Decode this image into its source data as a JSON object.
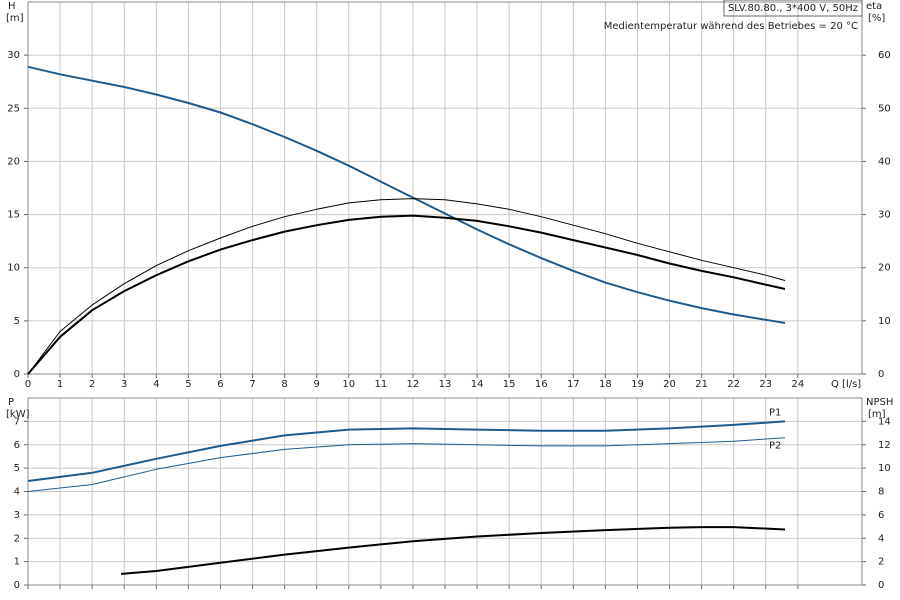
{
  "chart_data": [
    {
      "type": "line",
      "annotations": [
        "SLV.80.80., 3*400 V, 50Hz",
        "Medientemperatur während des Betriebes = 20 °C"
      ],
      "ylabel": "H",
      "yunit": "[m]",
      "y2label": "eta",
      "y2unit": "[%]",
      "xlabel": "Q [l/s]",
      "xlim": [
        0,
        26
      ],
      "xticks": [
        0,
        1,
        2,
        3,
        4,
        5,
        6,
        7,
        8,
        9,
        10,
        11,
        12,
        13,
        14,
        15,
        16,
        17,
        18,
        19,
        20,
        21,
        22,
        23,
        24
      ],
      "ylim": [
        0,
        35
      ],
      "yticks": [
        0,
        5,
        10,
        15,
        20,
        25,
        30
      ],
      "y2lim": [
        0,
        70
      ],
      "y2ticks": [
        0,
        10,
        20,
        30,
        40,
        50,
        60
      ],
      "grid": true,
      "show_xtick_labels": true,
      "series": [
        {
          "color": "#1f5a8c",
          "line_width": 2,
          "x": [
            0,
            1,
            2,
            3,
            4,
            5,
            6,
            7,
            8,
            9,
            10,
            11,
            12,
            13,
            14,
            15,
            16,
            17,
            18,
            19,
            20,
            21,
            22,
            23,
            23.6
          ],
          "values": [
            28.9,
            28.2,
            27.6,
            27.0,
            26.3,
            25.5,
            24.6,
            23.5,
            22.3,
            21.0,
            19.6,
            18.1,
            16.6,
            15.1,
            13.6,
            12.2,
            10.9,
            9.7,
            8.6,
            7.7,
            6.9,
            6.2,
            5.6,
            5.1,
            4.8
          ]
        },
        {
          "color": "#000000",
          "line_width": 1,
          "axis": "y2",
          "x": [
            0,
            1,
            2,
            3,
            4,
            5,
            6,
            7,
            8,
            9,
            10,
            11,
            12,
            13,
            14,
            15,
            16,
            17,
            18,
            19,
            20,
            21,
            22,
            23,
            23.6
          ],
          "values": [
            0,
            8,
            13,
            17,
            20.4,
            23.2,
            25.6,
            27.8,
            29.6,
            31,
            32.2,
            32.8,
            33,
            32.8,
            32,
            31,
            29.6,
            28,
            26.4,
            24.6,
            23,
            21.4,
            20,
            18.6,
            17.6
          ]
        },
        {
          "color": "#000000",
          "line_width": 2,
          "axis": "y2",
          "x": [
            0,
            1,
            2,
            3,
            4,
            5,
            6,
            7,
            8,
            9,
            10,
            11,
            12,
            13,
            14,
            15,
            16,
            17,
            18,
            19,
            20,
            21,
            22,
            23,
            23.6
          ],
          "values": [
            0,
            7,
            12,
            15.6,
            18.6,
            21.2,
            23.4,
            25.2,
            26.8,
            28,
            29,
            29.6,
            29.8,
            29.4,
            28.8,
            27.8,
            26.6,
            25.2,
            23.8,
            22.4,
            20.8,
            19.4,
            18.2,
            16.8,
            16
          ]
        }
      ]
    },
    {
      "type": "line",
      "ylabel": "P",
      "yunit": "[kW]",
      "y2label": "NPSH",
      "y2unit": "[m]",
      "xlim": [
        0,
        26
      ],
      "xticks": [
        0,
        1,
        2,
        3,
        4,
        5,
        6,
        7,
        8,
        9,
        10,
        11,
        12,
        13,
        14,
        15,
        16,
        17,
        18,
        19,
        20,
        21,
        22,
        23,
        24
      ],
      "ylim": [
        0,
        8
      ],
      "yticks": [
        0,
        1,
        2,
        3,
        4,
        5,
        6,
        7
      ],
      "y2lim": [
        0,
        16
      ],
      "y2ticks": [
        0,
        2,
        4,
        6,
        8,
        10,
        12,
        14
      ],
      "grid": true,
      "show_xtick_labels": false,
      "series": [
        {
          "name": "P1",
          "color": "#1f5a8c",
          "line_width": 2,
          "x": [
            0,
            2,
            4,
            6,
            8,
            10,
            12,
            14,
            16,
            18,
            20,
            22,
            23.6
          ],
          "values": [
            4.45,
            4.8,
            5.4,
            5.95,
            6.4,
            6.65,
            6.7,
            6.65,
            6.6,
            6.6,
            6.7,
            6.85,
            7.0
          ]
        },
        {
          "name": "P2",
          "color": "#1f5a8c",
          "line_width": 1,
          "x": [
            0,
            2,
            4,
            6,
            8,
            10,
            12,
            14,
            16,
            18,
            20,
            22,
            23.6
          ],
          "values": [
            4.0,
            4.3,
            4.95,
            5.45,
            5.8,
            6.0,
            6.05,
            6.0,
            5.95,
            5.95,
            6.05,
            6.15,
            6.3
          ]
        },
        {
          "color": "#000000",
          "line_width": 2,
          "axis": "y2",
          "x": [
            2.9,
            4,
            6,
            8,
            10,
            12,
            14,
            16,
            18,
            20,
            21,
            22,
            23.6
          ],
          "values": [
            0.95,
            1.2,
            1.9,
            2.6,
            3.2,
            3.75,
            4.15,
            4.45,
            4.7,
            4.9,
            4.95,
            4.95,
            4.75
          ]
        }
      ]
    }
  ]
}
